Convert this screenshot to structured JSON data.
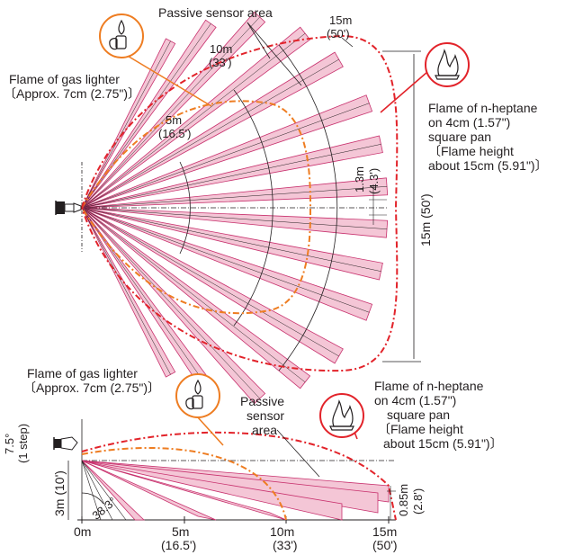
{
  "top_view": {
    "passive_sensor_label": "Passive sensor area",
    "gas_lighter_label_1": "Flame of gas lighter",
    "gas_lighter_label_2": "〔Approx. 7cm (2.75\")〕",
    "heptane_label_1": "Flame of n-heptane",
    "heptane_label_2": "on 4cm (1.57\")",
    "heptane_label_3": "square pan",
    "heptane_label_4": "〔Flame height",
    "heptane_label_5": "about 15cm (5.91\")〕",
    "range_15m": "15m",
    "range_15m_ft": "(50')",
    "range_10m": "10m",
    "range_10m_ft": "(33')",
    "range_5m": "5m",
    "range_5m_ft": "(16.5')",
    "width_13m": "1.3m",
    "width_13m_ft": "(4.3')",
    "height_15m": "15m (50')"
  },
  "side_view": {
    "gas_lighter_label_1": "Flame of gas lighter",
    "gas_lighter_label_2": "〔Approx. 7cm (2.75\")〕",
    "passive_label_1": "Passive",
    "passive_label_2": "sensor",
    "passive_label_3": "area",
    "heptane_label_1": "Flame of n-heptane",
    "heptane_label_2": "on 4cm (1.57\")",
    "heptane_label_3": "square pan",
    "heptane_label_4": "〔Flame height",
    "heptane_label_5": "about 15cm (5.91\")〕",
    "tilt_label": "7.5°",
    "tilt_step": "(1 step)",
    "height_label": "3m (10')",
    "angle_label": "38.3°",
    "right_dim": "0.85m",
    "right_dim_ft": "(2.8')",
    "axis_0": "0m",
    "axis_5": "5m",
    "axis_5_ft": "(16.5')",
    "axis_10": "10m",
    "axis_10_ft": "(33')",
    "axis_15": "15m",
    "axis_15_ft": "(50')"
  },
  "colors": {
    "beam_fill": "#f4c6d6",
    "beam_stroke": "#c8326e",
    "heptane_red": "#e2232a",
    "lighter_orange": "#ee7d22",
    "line": "#231f20"
  },
  "icons": [
    "sensor-icon",
    "gas-lighter-flame-icon",
    "heptane-pan-flame-icon"
  ]
}
